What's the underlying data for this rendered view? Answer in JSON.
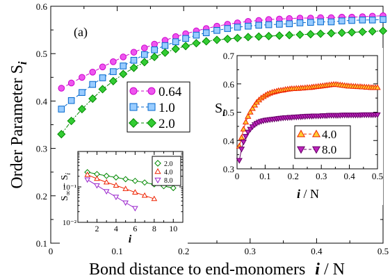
{
  "panel_label": "(a)",
  "main_axis_labels": {
    "ylabel": "Order Parameter S",
    "ylabel_sub": "i",
    "xlabel": "Bond distance to end-monomers",
    "xlabel_var": "i",
    "xlabel_tail": " / N"
  },
  "inset1_axis_labels": {
    "ylabel": "S",
    "ylabel_sub": "i",
    "xlabel_var": "i",
    "xlabel_tail": " / N"
  },
  "inset2_axis_labels": {
    "ylabel_a": "S",
    "ylabel_a_sub": "∞",
    "ylabel_b": " − S",
    "ylabel_b_sub": "i",
    "xlabel": "i"
  },
  "chart_data": [
    {
      "id": "main",
      "type": "line",
      "xlim": [
        0,
        0.5
      ],
      "ylim": [
        0.1,
        0.6
      ],
      "xticks": [
        "0",
        "0.1",
        "0.2",
        "0.3",
        "0.4",
        "0.5"
      ],
      "yticks": [
        "0.1",
        "0.2",
        "0.3",
        "0.4",
        "0.5",
        "0.6"
      ],
      "legend_position": "center-left",
      "series": [
        {
          "name": "0.64",
          "color": "#cc00cc",
          "fill": "#ee55ee",
          "marker": "circle",
          "x": [
            0.016,
            0.031,
            0.047,
            0.063,
            0.078,
            0.094,
            0.109,
            0.125,
            0.141,
            0.156,
            0.172,
            0.188,
            0.203,
            0.219,
            0.234,
            0.25,
            0.266,
            0.281,
            0.297,
            0.313,
            0.328,
            0.344,
            0.359,
            0.375,
            0.391,
            0.406,
            0.422,
            0.438,
            0.453,
            0.469,
            0.484,
            0.5
          ],
          "y": [
            0.427,
            0.438,
            0.45,
            0.461,
            0.472,
            0.483,
            0.493,
            0.503,
            0.512,
            0.52,
            0.528,
            0.536,
            0.542,
            0.548,
            0.553,
            0.558,
            0.562,
            0.565,
            0.568,
            0.57,
            0.572,
            0.573,
            0.574,
            0.575,
            0.575,
            0.576,
            0.576,
            0.577,
            0.577,
            0.578,
            0.579,
            0.58
          ]
        },
        {
          "name": "1.0",
          "color": "#0066cc",
          "fill": "#99ccff",
          "marker": "square",
          "x": [
            0.016,
            0.031,
            0.047,
            0.063,
            0.078,
            0.094,
            0.109,
            0.125,
            0.141,
            0.156,
            0.172,
            0.188,
            0.203,
            0.219,
            0.234,
            0.25,
            0.266,
            0.281,
            0.297,
            0.313,
            0.328,
            0.344,
            0.359,
            0.375,
            0.391,
            0.406,
            0.422,
            0.438,
            0.453,
            0.469,
            0.484,
            0.5
          ],
          "y": [
            0.383,
            0.401,
            0.418,
            0.435,
            0.449,
            0.462,
            0.474,
            0.486,
            0.498,
            0.508,
            0.517,
            0.525,
            0.532,
            0.539,
            0.544,
            0.549,
            0.553,
            0.556,
            0.558,
            0.56,
            0.561,
            0.562,
            0.563,
            0.565,
            0.566,
            0.567,
            0.567,
            0.569,
            0.57,
            0.571,
            0.571,
            0.572
          ]
        },
        {
          "name": "2.0",
          "color": "#008800",
          "fill": "#33cc33",
          "marker": "diamond",
          "x": [
            0.016,
            0.031,
            0.047,
            0.063,
            0.078,
            0.094,
            0.109,
            0.125,
            0.141,
            0.156,
            0.172,
            0.188,
            0.203,
            0.219,
            0.234,
            0.25,
            0.266,
            0.281,
            0.297,
            0.313,
            0.328,
            0.344,
            0.359,
            0.375,
            0.391,
            0.406,
            0.422,
            0.438,
            0.453,
            0.469,
            0.484,
            0.5
          ],
          "y": [
            0.33,
            0.358,
            0.383,
            0.405,
            0.425,
            0.442,
            0.457,
            0.47,
            0.482,
            0.493,
            0.502,
            0.51,
            0.516,
            0.522,
            0.526,
            0.529,
            0.531,
            0.533,
            0.535,
            0.536,
            0.537,
            0.538,
            0.539,
            0.54,
            0.541,
            0.542,
            0.543,
            0.544,
            0.545,
            0.546,
            0.547,
            0.548
          ]
        }
      ]
    },
    {
      "id": "inset-top-right",
      "type": "line",
      "xlim": [
        0,
        0.5
      ],
      "ylim": [
        0.3,
        0.7
      ],
      "xticks": [
        "0",
        "0.1",
        "0.2",
        "0.3",
        "0.4",
        "0.5"
      ],
      "yticks": [
        "0.3",
        "0.4",
        "0.5",
        "0.6",
        "0.7"
      ],
      "legend_position": "bottom-right",
      "series": [
        {
          "name": "4.0",
          "color": "#ee2200",
          "fill": "#ffcc33",
          "marker": "triangle-up",
          "x": [
            0.008,
            0.016,
            0.023,
            0.031,
            0.039,
            0.047,
            0.055,
            0.063,
            0.07,
            0.078,
            0.086,
            0.094,
            0.102,
            0.109,
            0.117,
            0.125,
            0.133,
            0.141,
            0.148,
            0.156,
            0.164,
            0.172,
            0.18,
            0.188,
            0.195,
            0.203,
            0.211,
            0.219,
            0.227,
            0.234,
            0.242,
            0.25,
            0.258,
            0.266,
            0.273,
            0.281,
            0.289,
            0.297,
            0.305,
            0.313,
            0.32,
            0.328,
            0.336,
            0.344,
            0.352,
            0.359,
            0.367,
            0.375,
            0.383,
            0.391,
            0.398,
            0.406,
            0.414,
            0.422,
            0.43,
            0.438,
            0.445,
            0.453,
            0.461,
            0.469,
            0.477,
            0.484,
            0.492,
            0.5
          ],
          "y": [
            0.38,
            0.41,
            0.44,
            0.465,
            0.485,
            0.5,
            0.513,
            0.525,
            0.535,
            0.543,
            0.55,
            0.555,
            0.56,
            0.564,
            0.567,
            0.57,
            0.572,
            0.574,
            0.576,
            0.577,
            0.578,
            0.58,
            0.581,
            0.582,
            0.583,
            0.583,
            0.584,
            0.584,
            0.585,
            0.585,
            0.586,
            0.587,
            0.587,
            0.588,
            0.589,
            0.59,
            0.591,
            0.592,
            0.593,
            0.594,
            0.595,
            0.596,
            0.597,
            0.598,
            0.598,
            0.597,
            0.596,
            0.595,
            0.594,
            0.593,
            0.592,
            0.592,
            0.591,
            0.591,
            0.59,
            0.59,
            0.589,
            0.589,
            0.588,
            0.588,
            0.587,
            0.587,
            0.587,
            0.587
          ]
        },
        {
          "name": "8.0",
          "color": "#660066",
          "fill": "#bb22bb",
          "marker": "triangle-down",
          "x": [
            0.008,
            0.016,
            0.023,
            0.031,
            0.039,
            0.047,
            0.055,
            0.063,
            0.07,
            0.078,
            0.086,
            0.094,
            0.102,
            0.109,
            0.117,
            0.125,
            0.133,
            0.141,
            0.148,
            0.156,
            0.164,
            0.172,
            0.18,
            0.188,
            0.195,
            0.203,
            0.211,
            0.219,
            0.227,
            0.234,
            0.242,
            0.25,
            0.258,
            0.266,
            0.273,
            0.281,
            0.289,
            0.297,
            0.305,
            0.313,
            0.32,
            0.328,
            0.336,
            0.344,
            0.352,
            0.359,
            0.367,
            0.375,
            0.383,
            0.391,
            0.398,
            0.406,
            0.414,
            0.422,
            0.43,
            0.438,
            0.445,
            0.453,
            0.461,
            0.469,
            0.477,
            0.484,
            0.492,
            0.5
          ],
          "y": [
            0.33,
            0.37,
            0.395,
            0.415,
            0.43,
            0.44,
            0.449,
            0.456,
            0.461,
            0.465,
            0.468,
            0.47,
            0.472,
            0.473,
            0.474,
            0.475,
            0.476,
            0.477,
            0.478,
            0.479,
            0.48,
            0.481,
            0.481,
            0.482,
            0.482,
            0.483,
            0.483,
            0.484,
            0.484,
            0.485,
            0.485,
            0.486,
            0.486,
            0.486,
            0.487,
            0.487,
            0.487,
            0.487,
            0.488,
            0.488,
            0.488,
            0.489,
            0.489,
            0.489,
            0.489,
            0.489,
            0.489,
            0.49,
            0.49,
            0.49,
            0.49,
            0.49,
            0.49,
            0.49,
            0.49,
            0.49,
            0.491,
            0.491,
            0.491,
            0.491,
            0.491,
            0.491,
            0.491,
            0.491
          ]
        }
      ]
    },
    {
      "id": "inset-bottom-left",
      "type": "line",
      "yscale": "log",
      "xlim": [
        0,
        11
      ],
      "ylim": [
        0.01,
        1
      ],
      "xticks": [
        "2",
        "4",
        "6",
        "8",
        "10"
      ],
      "yticks": [
        "10⁻²",
        "10⁻¹"
      ],
      "legend_position": "top-right",
      "series": [
        {
          "name": "2.0",
          "color": "#008800",
          "fill": "none",
          "marker": "diamond-open",
          "x": [
            1,
            2,
            3,
            4,
            5,
            6,
            7,
            8,
            9,
            10
          ],
          "y": [
            0.26,
            0.23,
            0.205,
            0.185,
            0.165,
            0.148,
            0.133,
            0.118,
            0.105,
            0.093
          ]
        },
        {
          "name": "4.0",
          "color": "#ee2200",
          "fill": "none",
          "marker": "triangle-up-open",
          "x": [
            1,
            2,
            3,
            4,
            5,
            6,
            7,
            8
          ],
          "y": [
            0.22,
            0.17,
            0.135,
            0.11,
            0.088,
            0.07,
            0.057,
            0.046
          ]
        },
        {
          "name": "8.0",
          "color": "#9922cc",
          "fill": "none",
          "marker": "triangle-down-open",
          "x": [
            1,
            2,
            3,
            4,
            5,
            6
          ],
          "y": [
            0.16,
            0.11,
            0.075,
            0.052,
            0.036,
            0.025
          ]
        }
      ]
    }
  ]
}
